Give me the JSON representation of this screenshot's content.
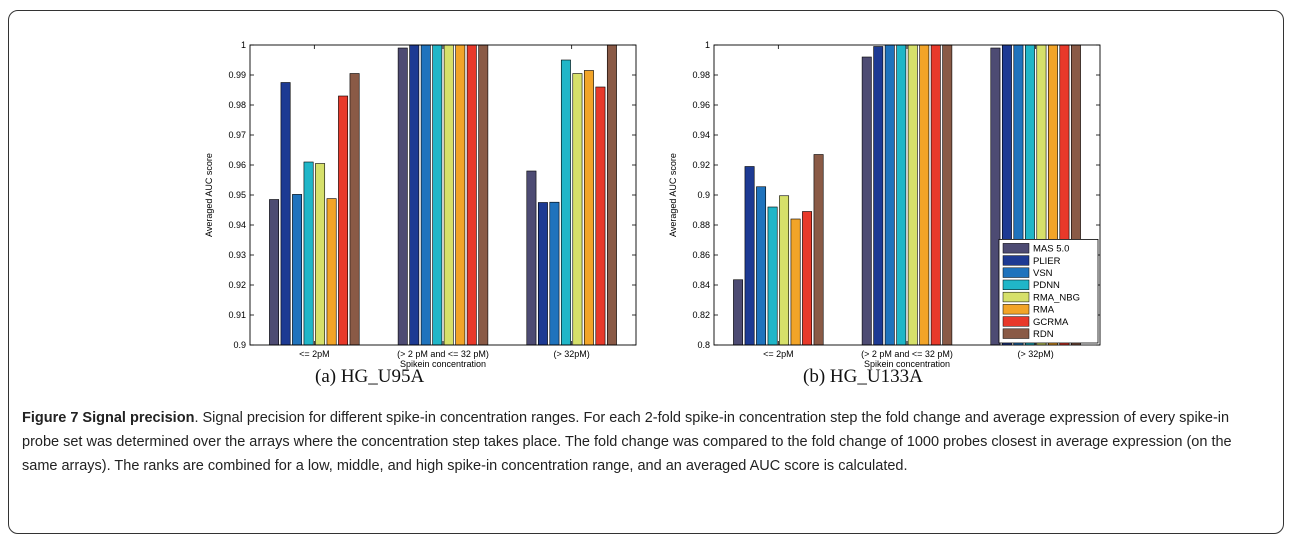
{
  "colors": {
    "MAS 5.0": "#4d4b73",
    "PLIER": "#1d3a93",
    "VSN": "#1f73bd",
    "PDNN": "#20b6c8",
    "RMA_NBG": "#d6e06a",
    "RMA": "#f2a428",
    "GCRMA": "#e8392a",
    "RDN": "#8a5a46"
  },
  "chart_data": [
    {
      "type": "bar",
      "subcaption": "(a) HG_U95A",
      "xlabel": "Spikein concentration",
      "ylabel": "Averaged AUC score",
      "ylim": [
        0.9,
        1.0
      ],
      "yticks": [
        "0.9",
        "0.91",
        "0.92",
        "0.93",
        "0.94",
        "0.95",
        "0.96",
        "0.97",
        "0.98",
        "0.99",
        "1"
      ],
      "grid": false,
      "legend": "",
      "categories": [
        "<= 2pM",
        "(> 2 pM and <= 32 pM)",
        "(> 32pM)"
      ],
      "series": [
        {
          "name": "MAS 5.0",
          "values": [
            0.9485,
            0.999,
            0.958
          ]
        },
        {
          "name": "PLIER",
          "values": [
            0.9875,
            1.0,
            0.9475
          ]
        },
        {
          "name": "VSN",
          "values": [
            0.9502,
            1.0,
            0.9476
          ]
        },
        {
          "name": "PDNN",
          "values": [
            0.961,
            1.0,
            0.995
          ]
        },
        {
          "name": "RMA_NBG",
          "values": [
            0.9605,
            1.0,
            0.9905
          ]
        },
        {
          "name": "RMA",
          "values": [
            0.9488,
            1.0,
            0.9915
          ]
        },
        {
          "name": "GCRMA",
          "values": [
            0.983,
            1.0,
            0.986
          ]
        },
        {
          "name": "RDN",
          "values": [
            0.9905,
            1.0,
            1.0
          ]
        }
      ]
    },
    {
      "type": "bar",
      "subcaption": "(b) HG_U133A",
      "xlabel": "Spikein concentration",
      "ylabel": "Averaged AUC score",
      "ylim": [
        0.8,
        1.0
      ],
      "yticks": [
        "0.8",
        "0.82",
        "0.84",
        "0.86",
        "0.88",
        "0.9",
        "0.92",
        "0.94",
        "0.96",
        "0.98",
        "1"
      ],
      "grid": false,
      "legend": "bottom-right",
      "categories": [
        "<= 2pM",
        "(> 2 pM and <= 32 pM)",
        "(> 32pM)"
      ],
      "series": [
        {
          "name": "MAS 5.0",
          "values": [
            0.8435,
            0.992,
            0.998
          ]
        },
        {
          "name": "PLIER",
          "values": [
            0.919,
            0.999,
            1.0
          ]
        },
        {
          "name": "VSN",
          "values": [
            0.9055,
            1.0,
            1.0
          ]
        },
        {
          "name": "PDNN",
          "values": [
            0.892,
            1.0,
            1.0
          ]
        },
        {
          "name": "RMA_NBG",
          "values": [
            0.8995,
            1.0,
            1.0
          ]
        },
        {
          "name": "RMA",
          "values": [
            0.884,
            1.0,
            1.0
          ]
        },
        {
          "name": "GCRMA",
          "values": [
            0.889,
            1.0,
            1.0
          ]
        },
        {
          "name": "RDN",
          "values": [
            0.927,
            1.0,
            1.0
          ]
        }
      ]
    }
  ],
  "caption": {
    "label": "Figure 7 Signal precision",
    "text": ". Signal precision for different spike-in concentration ranges. For each 2-fold spike-in concentration step the fold change and average expression of every spike-in probe set was determined over the arrays where the concentration step takes place. The fold change was compared to the fold change of 1000 probes closest in average expression (on the same arrays). The ranks are combined for a low, middle, and high spike-in concentration range, and an averaged AUC score is calculated."
  }
}
